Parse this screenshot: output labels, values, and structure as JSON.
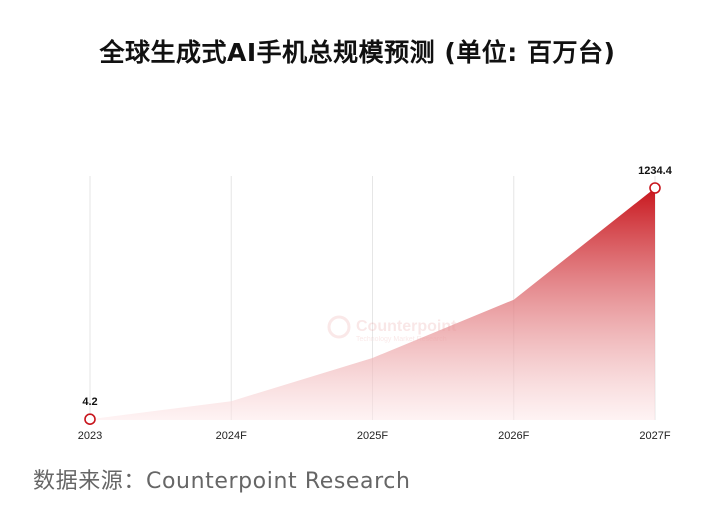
{
  "title": "全球生成式AI手机总规模预测 (单位: 百万台)",
  "source": "数据来源：Counterpoint Research",
  "watermark": {
    "brand": "Counterpoint",
    "tagline": "Technology Market Research"
  },
  "colors": {
    "area_top": "#c8161d",
    "area_bottom": "#fde9ea",
    "marker": "#c8161d",
    "grid": "#e6e6e6"
  },
  "chart_data": {
    "type": "area",
    "title": "全球生成式AI手机总规模预测 (单位: 百万台)",
    "categories": [
      "2023",
      "2024F",
      "2025F",
      "2026F",
      "2027F"
    ],
    "series": [
      {
        "values": [
          4.2,
          100,
          330,
          640,
          1234.4
        ]
      }
    ],
    "data_labels": [
      {
        "category": "2023",
        "label": "4.2"
      },
      {
        "category": "2027F",
        "label": "1234.4"
      }
    ],
    "ylim": [
      0,
      1234.4
    ],
    "grid": "vertical",
    "legend": "none"
  }
}
